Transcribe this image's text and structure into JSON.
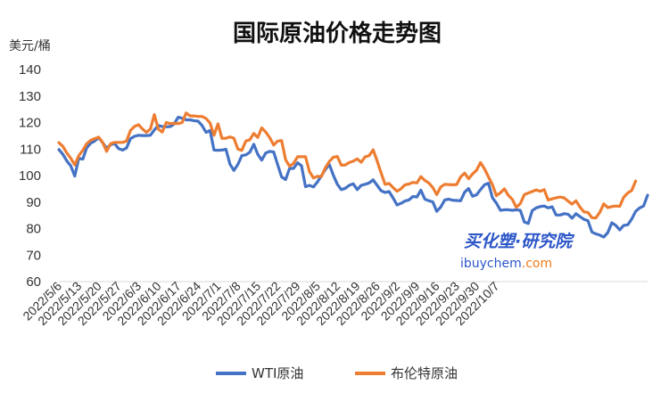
{
  "chart_data": {
    "type": "line",
    "title": "国际原油价格走势图",
    "ylabel": "美元/桶",
    "xlabel": "",
    "ylim": [
      60,
      140
    ],
    "yticks": [
      60,
      70,
      80,
      90,
      100,
      110,
      120,
      130,
      140
    ],
    "grid": false,
    "legend_position": "bottom",
    "xtick_labels": [
      "2022/5/6",
      "2022/5/13",
      "2022/5/20",
      "2022/5/27",
      "2022/6/3",
      "2022/6/10",
      "2022/6/17",
      "2022/6/24",
      "2022/7/1",
      "2022/7/8",
      "2022/7/15",
      "2022/7/22",
      "2022/7/29",
      "2022/8/5",
      "2022/8/12",
      "2022/8/19",
      "2022/8/26",
      "2022/9/2",
      "2022/9/9",
      "2022/9/16",
      "2022/9/23",
      "2022/9/30",
      "2022/10/7"
    ],
    "series": [
      {
        "name": "WTI原油",
        "color": "#4472c4",
        "values": [
          109.8,
          108,
          105.5,
          103.6,
          99.8,
          106.5,
          106.2,
          110.5,
          112.2,
          113,
          114.3,
          112.4,
          110.3,
          111.6,
          112.1,
          110.2,
          109.6,
          110.4,
          113.9,
          114.8,
          115.2,
          115.1,
          115.1,
          115.2,
          117.2,
          118.9,
          118.5,
          118.4,
          118.5,
          119.5,
          122,
          121.6,
          121,
          121,
          120.7,
          120.5,
          118.9,
          116.3,
          117,
          109.6,
          109.5,
          109.6,
          109.9,
          104.3,
          101.9,
          104.2,
          107.5,
          107.8,
          108.8,
          111.8,
          108,
          105.8,
          108.5,
          109.1,
          108.9,
          104.1,
          99.5,
          98.5,
          102.7,
          102.7,
          104.8,
          103.7,
          95.8,
          96.3,
          95.7,
          97.6,
          99.9,
          102.3,
          104.2,
          100.1,
          96.7,
          94.7,
          95.2,
          96.3,
          96.9,
          94.7,
          96.3,
          96.7,
          97.2,
          98.4,
          96.3,
          94.3,
          93.6,
          94,
          91.6,
          88.9,
          89.5,
          90.4,
          90.8,
          92.1,
          91.9,
          94.5,
          91.1,
          90.5,
          90.1,
          86.5,
          88.1,
          90.8,
          91.1,
          90.7,
          90.6,
          90.5,
          93.7,
          95.1,
          92.2,
          92.7,
          94.7,
          96.5,
          97.1,
          91.6,
          89.6,
          86.9,
          87.1,
          87.1,
          86.9,
          87.1,
          86.9,
          82.5,
          81.9,
          86.8,
          87.8,
          88.3,
          88.5,
          87.8,
          88.2,
          85.1,
          85.1,
          85.6,
          85.4,
          83.9,
          85.6,
          84.5,
          83.5,
          83,
          78.7,
          78,
          77.5,
          76.8,
          78.5,
          82.2,
          81.2,
          79.5,
          81.2,
          81.4,
          83.6,
          86.5,
          87.8,
          88.5,
          92.6
        ]
      },
      {
        "name": "布伦特原油",
        "color": "#ed7d31",
        "values": [
          112.4,
          111,
          108.5,
          106.5,
          104,
          107.5,
          109.5,
          112,
          113.3,
          113.9,
          114.5,
          112.5,
          109.1,
          112,
          112.5,
          112.5,
          112.5,
          113,
          117,
          118.5,
          119.2,
          117.6,
          116.3,
          117.5,
          123,
          117.5,
          116.4,
          120,
          119.6,
          119.7,
          119.6,
          120,
          123.6,
          122.5,
          122.5,
          122.3,
          122.3,
          121.5,
          119.8,
          115.2,
          119.5,
          114,
          114.1,
          114.6,
          114.1,
          110,
          109.5,
          113,
          113.5,
          115.9,
          114.4,
          118,
          116.4,
          114.3,
          111.5,
          113,
          113.2,
          106,
          103.5,
          104.6,
          107.1,
          107.1,
          107.1,
          101.5,
          99.1,
          99.7,
          99.6,
          103,
          105.3,
          106.9,
          107.2,
          103.9,
          104,
          104.9,
          105.4,
          106.3,
          105,
          107.1,
          107.5,
          109.7,
          105.5,
          101,
          96.7,
          97,
          95.5,
          94.1,
          95,
          96.5,
          96.8,
          97.4,
          97.2,
          99.6,
          98.2,
          97.2,
          95.5,
          92.8,
          95.7,
          96.7,
          96.6,
          96.5,
          96.6,
          99.5,
          100.9,
          98.8,
          100.6,
          102,
          104.9,
          102.5,
          99.5,
          96.5,
          92.4,
          93.5,
          95,
          92.5,
          91,
          88,
          89.4,
          92.8,
          93.4,
          94,
          94.6,
          94.1,
          94.7,
          90.8,
          91.2,
          91.6,
          91.9,
          91.6,
          90.4,
          89.2,
          90.5,
          88.1,
          86.3,
          86.1,
          84.1,
          84,
          86.2,
          89.3,
          87.9,
          88.3,
          88.5,
          88.4,
          91.8,
          93.4,
          94.4,
          97.9
        ]
      }
    ]
  },
  "watermark": {
    "brand_text": "买化塑·研究院",
    "site_prefix": "ibuychem",
    "site_suffix": ".com"
  }
}
